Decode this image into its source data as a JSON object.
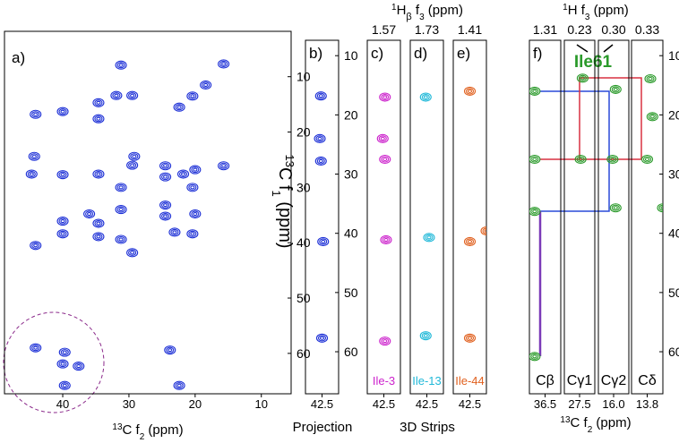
{
  "figure": {
    "group_header": [
      "1",
      "H",
      "β",
      " f",
      "3",
      " (ppm)"
    ],
    "f_header": [
      "1",
      "H f",
      "3",
      " (ppm)"
    ],
    "y_label": [
      "13",
      "C f",
      "1",
      " (ppm)"
    ],
    "x_label_a": [
      "13",
      "C f",
      "2",
      " (ppm)"
    ],
    "x_label_f": [
      "13",
      "C f",
      "2",
      " (ppm)"
    ],
    "projection_label": "Projection",
    "strips_label": "3D Strips",
    "residue_label": "Ile61"
  },
  "chart_data": [
    {
      "type": "scatter",
      "panel_label": "a)",
      "color": "#1c2fd6",
      "xlim": [
        48.8,
        5.5
      ],
      "xticks": [
        40,
        30,
        20,
        10
      ],
      "ylim": [
        1.8,
        67.3
      ],
      "yticks": [
        10,
        20,
        30,
        40,
        50,
        60
      ],
      "x": [
        31.2,
        15.7,
        44.1,
        40.0,
        34.6,
        31.9,
        29.5,
        34.6,
        22.4,
        20.4,
        18.4,
        44.3,
        44.7,
        40.0,
        34.6,
        31.2,
        29.5,
        29.2,
        24.5,
        24.5,
        21.8,
        20.0,
        20.4,
        15.7,
        40.0,
        36.0,
        31.2,
        34.6,
        24.5,
        24.5,
        23.1,
        20.0,
        20.4,
        44.1,
        40.0,
        34.6,
        31.2,
        29.5,
        44.1,
        39.7,
        40.0,
        37.6,
        39.7,
        23.8,
        22.4
      ],
      "y": [
        7.9,
        7.7,
        16.8,
        16.3,
        14.7,
        13.4,
        13.4,
        17.6,
        15.5,
        13.5,
        11.5,
        24.4,
        27.6,
        27.7,
        27.6,
        30.0,
        26.0,
        24.4,
        26.1,
        28.1,
        27.6,
        26.8,
        30.0,
        26.1,
        36.1,
        34.8,
        34.0,
        36.5,
        33.2,
        35.2,
        38.1,
        34.8,
        38.4,
        40.5,
        38.4,
        38.9,
        39.4,
        41.8,
        59.0,
        59.8,
        61.9,
        62.3,
        65.8,
        59.4,
        65.8
      ]
    },
    {
      "type": "scatter",
      "panel_label": "b)",
      "color": "#1c2fd6",
      "xlim": [
        44,
        41
      ],
      "xticks": [
        42.5
      ],
      "ylim": [
        7.4,
        67.1
      ],
      "yticks": [
        10,
        20,
        30,
        40,
        50,
        60
      ],
      "x": [
        42.6,
        42.7,
        42.6,
        42.4,
        42.5
      ],
      "y": [
        16.8,
        24.0,
        27.8,
        41.4,
        57.7
      ]
    },
    {
      "type": "scatter",
      "panel_label": "c)",
      "header": "1.57",
      "label": "Ile-3",
      "color": "#cc22cc",
      "xlim": [
        44,
        41
      ],
      "xticks": [
        42.5
      ],
      "ylim": [
        7.4,
        67.1
      ],
      "x": [
        42.4,
        42.6,
        42.4,
        42.3,
        42.4
      ],
      "y": [
        17.0,
        24.0,
        27.5,
        41.1,
        58.2
      ]
    },
    {
      "type": "scatter",
      "panel_label": "d)",
      "header": "1.73",
      "label": "Ile-13",
      "color": "#1fb8d8",
      "xlim": [
        44,
        41
      ],
      "xticks": [
        42.5
      ],
      "ylim": [
        7.4,
        67.1
      ],
      "x": [
        42.6,
        42.3,
        42.6
      ],
      "y": [
        17.0,
        40.7,
        57.3
      ]
    },
    {
      "type": "scatter",
      "panel_label": "e)",
      "header": "1.41",
      "label": "Ile-44",
      "color": "#e0601e",
      "xlim": [
        44,
        41
      ],
      "xticks": [
        42.5
      ],
      "ylim": [
        7.4,
        67.1
      ],
      "x": [
        42.5,
        42.5,
        42.5,
        41.0
      ],
      "y": [
        16.0,
        41.4,
        57.7,
        39.6
      ]
    },
    {
      "type": "scatter",
      "panel_label": "f)",
      "header": "1.31",
      "label": "Cβ",
      "color": "#2a9a2a",
      "xlim": [
        38,
        35
      ],
      "xticks": [
        36.5
      ],
      "ylim": [
        7.4,
        67.1
      ],
      "x": [
        37.5,
        37.5,
        37.5,
        37.5
      ],
      "y": [
        16.0,
        27.5,
        36.3,
        60.8
      ]
    },
    {
      "type": "scatter",
      "header": "0.23",
      "label": "Cγ1",
      "color": "#2a9a2a",
      "xlim": [
        29,
        26
      ],
      "xticks": [
        27.5
      ],
      "ylim": [
        7.4,
        67.1
      ],
      "x": [
        27.2,
        27.4
      ],
      "y": [
        13.8,
        27.5
      ]
    },
    {
      "type": "scatter",
      "header": "0.30",
      "label": "Cγ2",
      "color": "#2a9a2a",
      "xlim": [
        17.5,
        14.5
      ],
      "xticks": [
        {
          "value": 16,
          "label": "16.0"
        }
      ],
      "ylim": [
        7.4,
        67.1
      ],
      "x": [
        15.8,
        16.1,
        15.8
      ],
      "y": [
        15.7,
        27.5,
        35.7
      ]
    },
    {
      "type": "scatter",
      "header": "0.33",
      "label": "Cδ",
      "color": "#2a9a2a",
      "xlim": [
        15.3,
        12.3
      ],
      "xticks": [
        13.8
      ],
      "ylim": [
        7.4,
        67.1
      ],
      "yticks": [
        10,
        20,
        30,
        40,
        50,
        60
      ],
      "x": [
        13.5,
        13.3,
        13.8,
        12.3
      ],
      "y": [
        13.9,
        20.3,
        27.5,
        35.7
      ]
    }
  ]
}
